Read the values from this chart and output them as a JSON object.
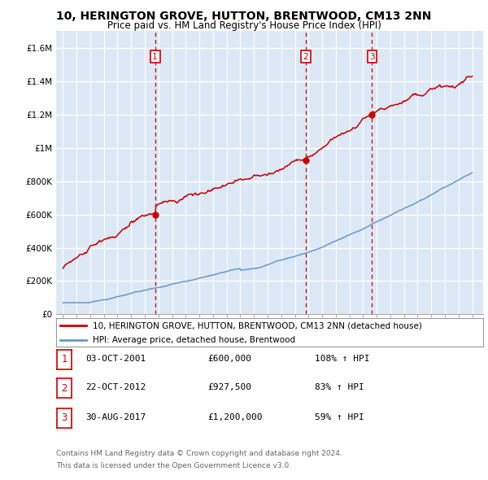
{
  "title": "10, HERINGTON GROVE, HUTTON, BRENTWOOD, CM13 2NN",
  "subtitle": "Price paid vs. HM Land Registry's House Price Index (HPI)",
  "ylabel_ticks": [
    "£0",
    "£200K",
    "£400K",
    "£600K",
    "£800K",
    "£1M",
    "£1.2M",
    "£1.4M",
    "£1.6M"
  ],
  "ytick_values": [
    0,
    200000,
    400000,
    600000,
    800000,
    1000000,
    1200000,
    1400000,
    1600000
  ],
  "ylim": [
    0,
    1700000
  ],
  "xlim_start": 1994.5,
  "xlim_end": 2025.8,
  "sale_color": "#cc0000",
  "hpi_color": "#6699cc",
  "sale_dates": [
    2001.75,
    2012.8,
    2017.66
  ],
  "sale_prices": [
    600000,
    927500,
    1200000
  ],
  "sale_labels": [
    "1",
    "2",
    "3"
  ],
  "legend_entries": [
    "10, HERINGTON GROVE, HUTTON, BRENTWOOD, CM13 2NN (detached house)",
    "HPI: Average price, detached house, Brentwood"
  ],
  "table_rows": [
    [
      "1",
      "03-OCT-2001",
      "£600,000",
      "108% ↑ HPI"
    ],
    [
      "2",
      "22-OCT-2012",
      "£927,500",
      "83% ↑ HPI"
    ],
    [
      "3",
      "30-AUG-2017",
      "£1,200,000",
      "59% ↑ HPI"
    ]
  ],
  "footnote1": "Contains HM Land Registry data © Crown copyright and database right 2024.",
  "footnote2": "This data is licensed under the Open Government Licence v3.0.",
  "background_color": "#ffffff",
  "plot_bg_color": "#dce8f5",
  "grid_color": "#ffffff",
  "title_fontsize": 10,
  "subtitle_fontsize": 8.5,
  "tick_fontsize": 7.5
}
